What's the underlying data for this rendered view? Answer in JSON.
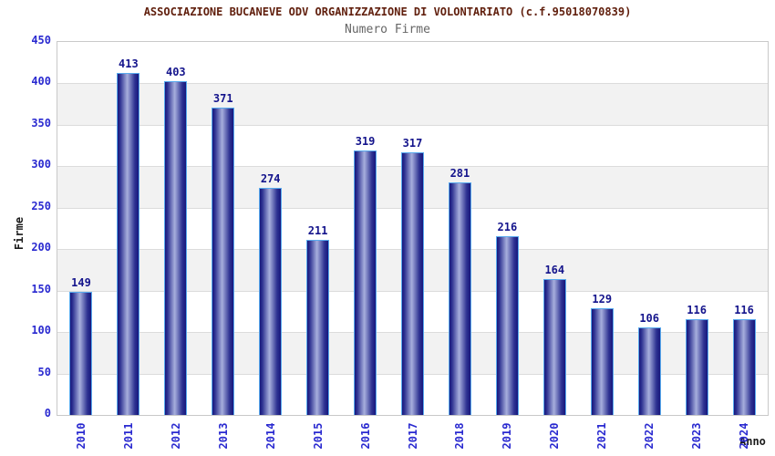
{
  "header": {
    "title": "ASSOCIAZIONE BUCANEVE ODV ORGANIZZAZIONE DI VOLONTARIATO (c.f.95018070839)",
    "subtitle": "Numero Firme"
  },
  "chart_data": {
    "type": "bar",
    "title": "Numero Firme",
    "categories": [
      "2010",
      "2011",
      "2012",
      "2013",
      "2014",
      "2015",
      "2016",
      "2017",
      "2018",
      "2019",
      "2020",
      "2021",
      "2022",
      "2023",
      "2024"
    ],
    "values": [
      149,
      413,
      403,
      371,
      274,
      211,
      319,
      317,
      281,
      216,
      164,
      129,
      106,
      116,
      116
    ],
    "xlabel": "Anno",
    "ylabel": "Firme",
    "ylim": [
      0,
      450
    ],
    "ytick_step": 50,
    "yticks": [
      0,
      50,
      100,
      150,
      200,
      250,
      300,
      350,
      400,
      450
    ],
    "grid": "horizontal-lines-with-alternating-bands",
    "legend_position": "none",
    "bar_value_labels": true
  },
  "colors": {
    "title": "#61200e",
    "subtitle": "#666666",
    "axis_tick_label": "#2a2ad0",
    "value_label": "#14148c",
    "axis_title": "#1a1a1a",
    "bar_dark": "#17177c",
    "bar_mid": "#2e3292",
    "bar_light": "#a7afdd",
    "bar_border": "#58aaee",
    "band_gray": "#f2f2f2",
    "band_white": "#ffffff",
    "gridline": "#dcdcdc",
    "plot_border": "#c9c9c9",
    "background": "#ffffff"
  }
}
